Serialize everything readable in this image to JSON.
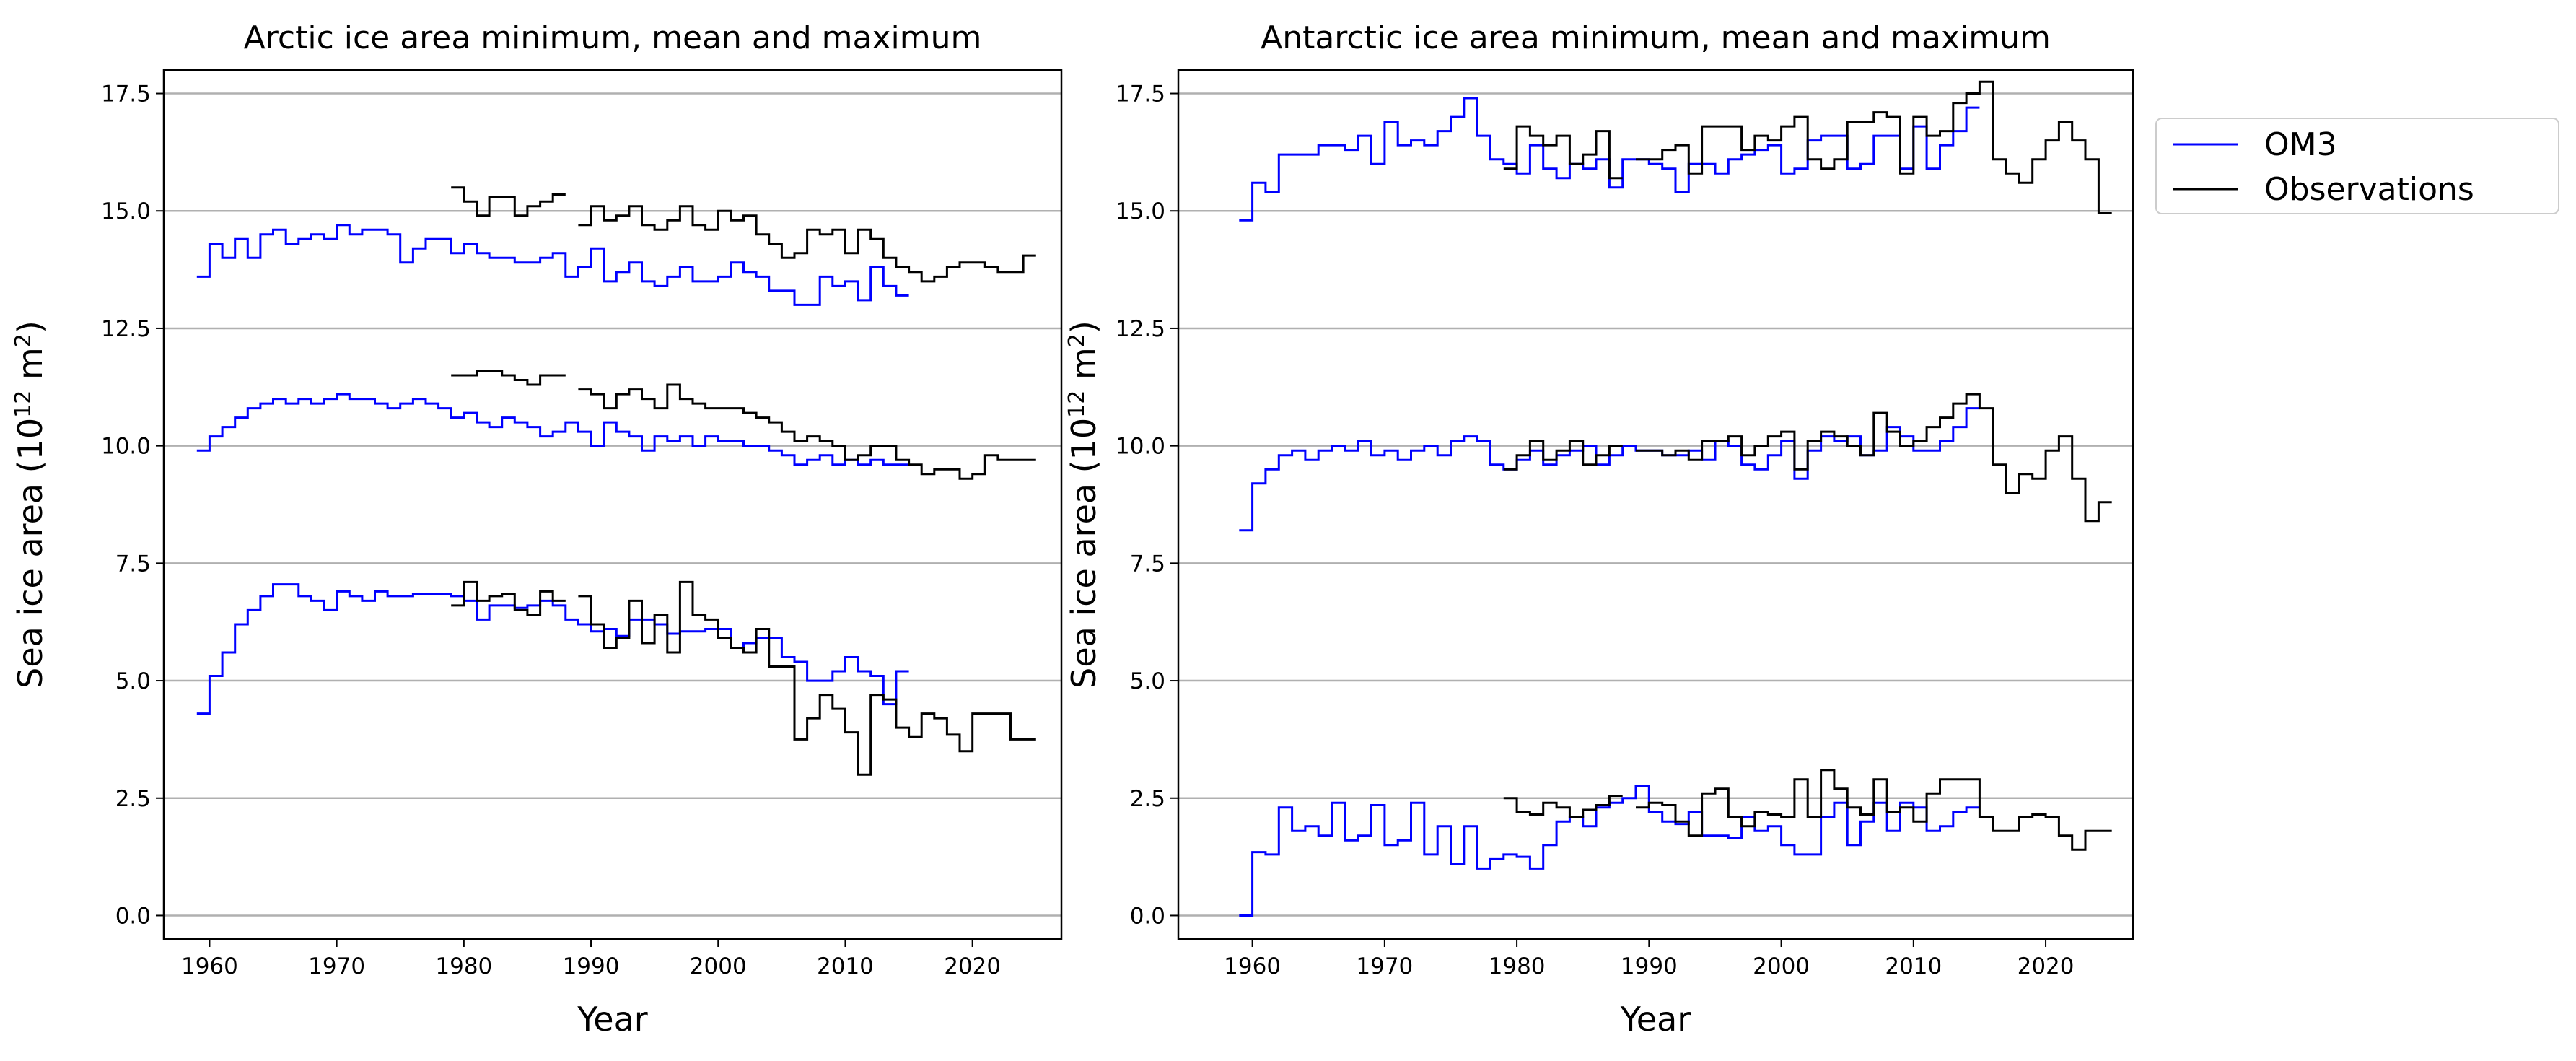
{
  "legend": {
    "entries": [
      {
        "name": "OM3",
        "color": "#0000ff"
      },
      {
        "name": "Observations",
        "color": "#000000"
      }
    ],
    "placement": "outside-right-top"
  },
  "chart_data": [
    {
      "type": "line",
      "step": true,
      "title": "Arctic ice area minimum, mean and maximum",
      "xlabel": "Year",
      "ylabel": "Sea ice area (10^12 m^2)",
      "xlim": [
        1956.4,
        2027
      ],
      "ylim": [
        -0.5,
        18
      ],
      "xticks": [
        1960,
        1970,
        1980,
        1990,
        2000,
        2010,
        2020
      ],
      "yticks": [
        "0.0",
        "2.5",
        "5.0",
        "7.5",
        "10.0",
        "12.5",
        "15.0",
        "17.5"
      ],
      "grid": "y",
      "series": [
        {
          "name": "OM3",
          "stat": "maximum",
          "color": "#0000ff",
          "start_year": 1959,
          "values": [
            13.6,
            14.3,
            14.0,
            14.4,
            14.0,
            14.5,
            14.6,
            14.3,
            14.4,
            14.5,
            14.4,
            14.7,
            14.5,
            14.6,
            14.6,
            14.5,
            13.9,
            14.2,
            14.4,
            14.4,
            14.1,
            14.3,
            14.1,
            14.0,
            14.0,
            13.9,
            13.9,
            14.0,
            14.1,
            13.6,
            13.8,
            14.2,
            13.5,
            13.7,
            13.9,
            13.5,
            13.4,
            13.6,
            13.8,
            13.5,
            13.5,
            13.6,
            13.9,
            13.7,
            13.6,
            13.3,
            13.3,
            13.0,
            13.0,
            13.6,
            13.4,
            13.5,
            13.1,
            13.8,
            13.4,
            13.2
          ]
        },
        {
          "name": "OM3",
          "stat": "mean",
          "color": "#0000ff",
          "start_year": 1959,
          "values": [
            9.9,
            10.2,
            10.4,
            10.6,
            10.8,
            10.9,
            11.0,
            10.9,
            11.0,
            10.9,
            11.0,
            11.1,
            11.0,
            11.0,
            10.9,
            10.8,
            10.9,
            11.0,
            10.9,
            10.8,
            10.6,
            10.7,
            10.5,
            10.4,
            10.6,
            10.5,
            10.4,
            10.2,
            10.3,
            10.5,
            10.3,
            10.0,
            10.5,
            10.3,
            10.2,
            9.9,
            10.2,
            10.1,
            10.2,
            10.0,
            10.2,
            10.1,
            10.1,
            10.0,
            10.0,
            9.9,
            9.8,
            9.6,
            9.7,
            9.8,
            9.6,
            9.7,
            9.6,
            9.7,
            9.6,
            9.6
          ]
        },
        {
          "name": "OM3",
          "stat": "minimum",
          "color": "#0000ff",
          "start_year": 1959,
          "values": [
            4.3,
            5.1,
            5.6,
            6.2,
            6.5,
            6.8,
            7.05,
            7.05,
            6.8,
            6.7,
            6.5,
            6.9,
            6.8,
            6.7,
            6.9,
            6.8,
            6.8,
            6.85,
            6.85,
            6.85,
            6.8,
            6.7,
            6.3,
            6.6,
            6.6,
            6.55,
            6.6,
            6.7,
            6.6,
            6.3,
            6.2,
            6.05,
            6.1,
            5.95,
            6.3,
            6.3,
            6.2,
            6.0,
            6.05,
            6.05,
            6.1,
            6.1,
            5.7,
            5.8,
            5.9,
            5.9,
            5.5,
            5.4,
            5.0,
            5.0,
            5.2,
            5.5,
            5.2,
            5.1,
            4.5,
            5.2
          ]
        },
        {
          "name": "Observations",
          "stat": "maximum",
          "color": "#000000",
          "start_year": 1979,
          "values": [
            15.5,
            15.2,
            14.9,
            15.3,
            15.3,
            14.9,
            15.1,
            15.2,
            15.35,
            null,
            14.7,
            15.1,
            14.8,
            14.9,
            15.1,
            14.7,
            14.6,
            14.8,
            15.1,
            14.7,
            14.6,
            15.0,
            14.8,
            14.9,
            14.5,
            14.3,
            14.0,
            14.1,
            14.6,
            14.5,
            14.6,
            14.1,
            14.6,
            14.4,
            14.0,
            13.8,
            13.7,
            13.5,
            13.6,
            13.8,
            13.9,
            13.9,
            13.8,
            13.7,
            13.7,
            14.05
          ]
        },
        {
          "name": "Observations",
          "stat": "mean",
          "color": "#000000",
          "start_year": 1979,
          "values": [
            11.5,
            11.5,
            11.6,
            11.6,
            11.5,
            11.4,
            11.3,
            11.5,
            11.5,
            null,
            11.2,
            11.1,
            10.8,
            11.1,
            11.2,
            11.0,
            10.8,
            11.3,
            11.0,
            10.9,
            10.8,
            10.8,
            10.8,
            10.7,
            10.6,
            10.5,
            10.3,
            10.1,
            10.2,
            10.1,
            10.0,
            9.7,
            9.8,
            10.0,
            10.0,
            9.7,
            9.6,
            9.4,
            9.5,
            9.5,
            9.3,
            9.4,
            9.8,
            9.7,
            9.7,
            9.7
          ]
        },
        {
          "name": "Observations",
          "stat": "minimum",
          "color": "#000000",
          "start_year": 1979,
          "values": [
            6.6,
            7.1,
            6.7,
            6.8,
            6.85,
            6.5,
            6.4,
            6.9,
            6.7,
            null,
            6.8,
            6.2,
            5.7,
            5.9,
            6.7,
            5.8,
            6.4,
            5.6,
            7.1,
            6.4,
            6.3,
            5.9,
            5.7,
            5.6,
            6.1,
            5.3,
            5.3,
            3.75,
            4.2,
            4.7,
            4.4,
            3.9,
            3.0,
            4.7,
            4.6,
            4.0,
            3.8,
            4.3,
            4.2,
            3.85,
            3.5,
            4.3,
            4.3,
            4.3,
            3.75,
            3.75
          ]
        }
      ]
    },
    {
      "type": "line",
      "step": true,
      "title": "Antarctic ice area minimum, mean and maximum",
      "xlabel": "Year",
      "ylabel": "Sea ice area (10^12 m^2)",
      "xlim": [
        1954.4,
        2026.6
      ],
      "ylim": [
        -0.5,
        18
      ],
      "xticks": [
        1960,
        1970,
        1980,
        1990,
        2000,
        2010,
        2020
      ],
      "yticks": [
        "0.0",
        "2.5",
        "5.0",
        "7.5",
        "10.0",
        "12.5",
        "15.0",
        "17.5"
      ],
      "grid": "y",
      "series": [
        {
          "name": "OM3",
          "stat": "maximum",
          "color": "#0000ff",
          "start_year": 1959,
          "values": [
            14.8,
            15.6,
            15.4,
            16.2,
            16.2,
            16.2,
            16.4,
            16.4,
            16.3,
            16.6,
            16.0,
            16.9,
            16.4,
            16.5,
            16.4,
            16.7,
            17.0,
            17.4,
            16.6,
            16.1,
            16.0,
            15.8,
            16.4,
            15.9,
            15.7,
            16.0,
            15.9,
            16.1,
            15.5,
            16.1,
            16.1,
            16.0,
            15.9,
            15.4,
            16.0,
            16.0,
            15.8,
            16.1,
            16.2,
            16.3,
            16.4,
            15.8,
            15.9,
            16.5,
            16.6,
            16.6,
            15.9,
            16.0,
            16.6,
            16.6,
            15.9,
            16.8,
            15.9,
            16.4,
            16.7,
            17.2
          ]
        },
        {
          "name": "OM3",
          "stat": "mean",
          "color": "#0000ff",
          "start_year": 1959,
          "values": [
            8.2,
            9.2,
            9.5,
            9.8,
            9.9,
            9.7,
            9.9,
            10.0,
            9.9,
            10.1,
            9.8,
            9.9,
            9.7,
            9.9,
            10.0,
            9.8,
            10.1,
            10.2,
            10.1,
            9.6,
            9.5,
            9.7,
            9.9,
            9.6,
            9.8,
            9.9,
            10.0,
            9.6,
            9.8,
            10.0,
            9.9,
            9.9,
            9.8,
            9.8,
            9.9,
            9.7,
            10.1,
            10.0,
            9.6,
            9.5,
            9.8,
            10.1,
            9.3,
            9.9,
            10.2,
            10.1,
            10.2,
            9.8,
            9.9,
            10.4,
            10.2,
            9.9,
            9.9,
            10.1,
            10.4,
            10.8
          ]
        },
        {
          "name": "OM3",
          "stat": "minimum",
          "color": "#0000ff",
          "start_year": 1959,
          "values": [
            0.0,
            1.35,
            1.3,
            2.3,
            1.8,
            1.9,
            1.7,
            2.4,
            1.6,
            1.7,
            2.35,
            1.5,
            1.6,
            2.4,
            1.3,
            1.9,
            1.1,
            1.9,
            1.0,
            1.2,
            1.3,
            1.25,
            1.0,
            1.5,
            2.0,
            2.1,
            1.9,
            2.3,
            2.4,
            2.5,
            2.75,
            2.2,
            2.0,
            1.95,
            2.2,
            1.7,
            1.7,
            1.65,
            2.1,
            1.8,
            1.9,
            1.5,
            1.3,
            1.3,
            2.1,
            2.4,
            1.5,
            2.0,
            2.4,
            1.8,
            2.4,
            2.3,
            1.8,
            1.9,
            2.2,
            2.3
          ]
        },
        {
          "name": "Observations",
          "stat": "maximum",
          "color": "#000000",
          "start_year": 1979,
          "values": [
            15.9,
            16.8,
            16.6,
            16.4,
            16.6,
            16.0,
            16.2,
            16.7,
            15.7,
            null,
            16.1,
            16.1,
            16.3,
            16.4,
            15.8,
            16.8,
            16.8,
            16.8,
            16.3,
            16.6,
            16.5,
            16.8,
            17.0,
            16.1,
            15.9,
            16.1,
            16.9,
            16.9,
            17.1,
            17.0,
            15.8,
            17.0,
            16.6,
            16.7,
            17.3,
            17.5,
            17.75,
            16.1,
            15.8,
            15.6,
            16.1,
            16.5,
            16.9,
            16.5,
            16.1,
            14.95
          ]
        },
        {
          "name": "Observations",
          "stat": "mean",
          "color": "#000000",
          "start_year": 1979,
          "values": [
            9.5,
            9.8,
            10.1,
            9.7,
            9.9,
            10.1,
            9.6,
            9.8,
            10.0,
            null,
            9.9,
            9.9,
            9.8,
            9.9,
            9.7,
            10.1,
            10.1,
            10.2,
            9.8,
            10.0,
            10.2,
            10.3,
            9.5,
            10.1,
            10.3,
            10.2,
            10.0,
            9.8,
            10.7,
            10.3,
            10.0,
            10.1,
            10.4,
            10.6,
            10.9,
            11.1,
            10.8,
            9.6,
            9.0,
            9.4,
            9.3,
            9.9,
            10.2,
            9.3,
            8.4,
            8.8
          ]
        },
        {
          "name": "Observations",
          "stat": "minimum",
          "color": "#000000",
          "start_year": 1979,
          "values": [
            2.5,
            2.2,
            2.15,
            2.4,
            2.3,
            2.1,
            2.25,
            2.35,
            2.55,
            null,
            2.3,
            2.4,
            2.35,
            2.0,
            1.7,
            2.6,
            2.7,
            2.1,
            1.9,
            2.2,
            2.15,
            2.1,
            2.9,
            2.1,
            3.1,
            2.7,
            2.3,
            2.15,
            2.9,
            2.2,
            2.3,
            2.0,
            2.6,
            2.9,
            2.9,
            2.9,
            2.1,
            1.8,
            1.8,
            2.1,
            2.15,
            2.1,
            1.7,
            1.4,
            1.8,
            1.8
          ]
        }
      ]
    }
  ]
}
